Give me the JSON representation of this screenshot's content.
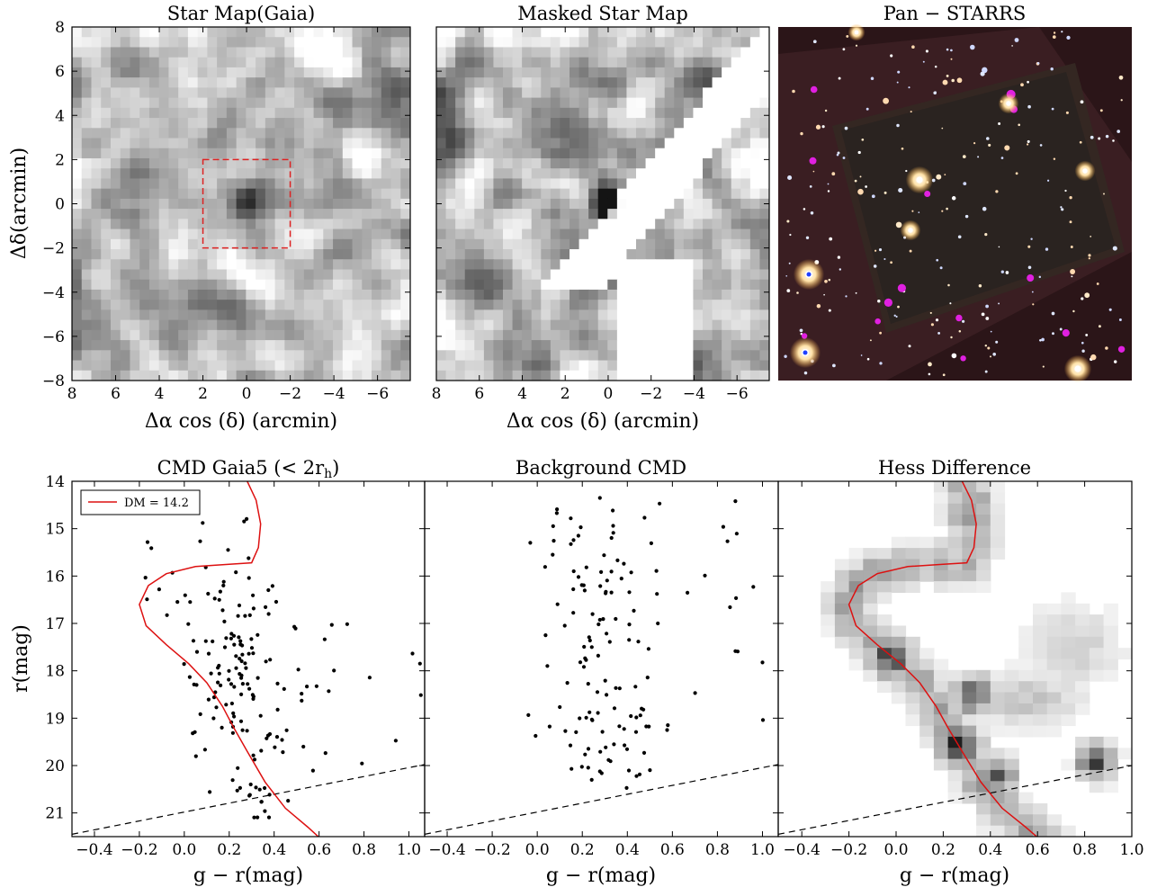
{
  "chart_data": [
    {
      "type": "heatmap",
      "title": "Star Map(Gaia)",
      "xlabel": "Δα cos (δ) (arcmin)",
      "ylabel": "Δδ(arcmin)",
      "xlim": [
        8,
        -7.5
      ],
      "ylim": [
        -8,
        8
      ],
      "xticks": [
        "8",
        "6",
        "4",
        "2",
        "0",
        "−2",
        "−4",
        "−6"
      ],
      "yticks": [
        "8",
        "6",
        "4",
        "2",
        "0",
        "−2",
        "−4",
        "−6",
        "−8"
      ],
      "colormap": "gray_r",
      "grid_cells": 35,
      "peak_center": [
        0,
        0
      ],
      "annotation_box": {
        "x": [
          -2,
          2
        ],
        "y": [
          -2,
          2
        ],
        "style": "dashed",
        "color": "#dd2222"
      }
    },
    {
      "type": "heatmap",
      "title": "Masked Star Map",
      "xlabel": "Δα cos (δ) (arcmin)",
      "xlim": [
        8,
        -7.5
      ],
      "ylim": [
        -8,
        8
      ],
      "xticks": [
        "8",
        "6",
        "4",
        "2",
        "0",
        "−2",
        "−4",
        "−6"
      ],
      "colormap": "gray_r",
      "grid_cells": 35,
      "peak_center": [
        0,
        0
      ]
    },
    {
      "type": "image",
      "title": "Pan − STARRS"
    },
    {
      "type": "scatter",
      "title": "CMD Gaia5 (< 2r_h)",
      "xlabel": "g − r(mag)",
      "ylabel": "r(mag)",
      "xlim": [
        -0.5,
        1.07
      ],
      "ylim": [
        21.5,
        14
      ],
      "xticks": [
        "−0.4",
        "−0.2",
        "0.0",
        "0.2",
        "0.4",
        "0.6",
        "0.8",
        "1.0"
      ],
      "yticks": [
        "14",
        "15",
        "16",
        "17",
        "18",
        "19",
        "20",
        "21"
      ],
      "legend": {
        "label": "DM = 14.2",
        "color": "#dd1111",
        "placement": "top-left"
      },
      "isochrone_dm": 14.2,
      "limit_line": {
        "x": [
          -0.5,
          1.1
        ],
        "y": [
          21.45,
          19.95
        ],
        "style": "dashed"
      },
      "points_count": 170
    },
    {
      "type": "scatter",
      "title": "Background CMD",
      "xlabel": "g − r(mag)",
      "xlim": [
        -0.5,
        1.07
      ],
      "ylim": [
        21.5,
        14
      ],
      "xticks": [
        "−0.4",
        "−0.2",
        "0.0",
        "0.2",
        "0.4",
        "0.6",
        "0.8",
        "1.0"
      ],
      "limit_line": {
        "x": [
          -0.5,
          1.1
        ],
        "y": [
          21.45,
          19.95
        ],
        "style": "dashed"
      },
      "points_count": 140
    },
    {
      "type": "heatmap",
      "title": "Hess Difference",
      "xlabel": "g − r(mag)",
      "xlim": [
        -0.5,
        1.0
      ],
      "ylim": [
        21.5,
        14
      ],
      "xticks": [
        "−0.4",
        "−0.2",
        "0.0",
        "0.2",
        "0.4",
        "0.6",
        "0.8",
        "1.0"
      ],
      "colormap": "gray_r",
      "peaks": [
        {
          "x": -0.02,
          "y": 17.7,
          "v": 1.0
        },
        {
          "x": 0.27,
          "y": 19.6,
          "v": 1.0
        },
        {
          "x": 0.33,
          "y": 18.5,
          "v": 0.8
        },
        {
          "x": 0.42,
          "y": 20.2,
          "v": 0.7
        },
        {
          "x": 0.85,
          "y": 19.9,
          "v": 0.75
        },
        {
          "x": 0.28,
          "y": 14.6,
          "v": 0.45
        }
      ],
      "limit_line": {
        "x": [
          -0.5,
          1.0
        ],
        "y": [
          21.45,
          20.0
        ],
        "style": "dashed"
      }
    }
  ]
}
